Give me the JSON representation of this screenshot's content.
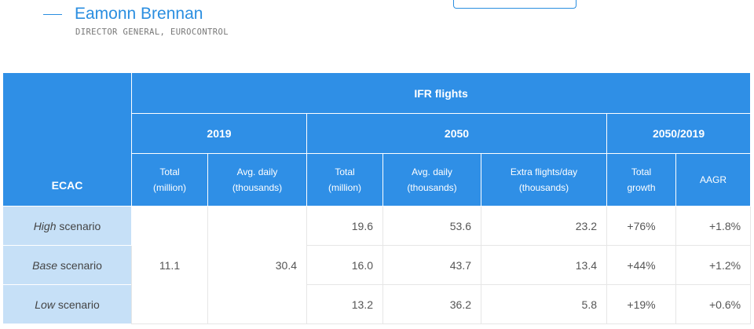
{
  "quote": {
    "author_name": "Eamonn Brennan",
    "author_role": "DIRECTOR GENERAL, EUROCONTROL"
  },
  "table": {
    "stub_header": "ECAC",
    "group_header": "IFR flights",
    "periods": [
      "2019",
      "2050",
      "2050/2019"
    ],
    "columns": [
      {
        "line1": "Total",
        "line2": "(million)"
      },
      {
        "line1": "Avg. daily",
        "line2": "(thousands)"
      },
      {
        "line1": "Total",
        "line2": "(million)"
      },
      {
        "line1": "Avg. daily",
        "line2": "(thousands)"
      },
      {
        "line1": "Extra flights/day",
        "line2": "(thousands)"
      },
      {
        "line1": "Total",
        "line2": "growth"
      },
      {
        "line1": "AAGR",
        "line2": ""
      }
    ],
    "base_2019": {
      "total_million": "11.1",
      "avg_daily_thousands": "30.4"
    },
    "rows": [
      {
        "name_italic": "High",
        "name_rest": " scenario",
        "total_2050": "19.6",
        "avg_daily_2050": "53.6",
        "extra_per_day": "23.2",
        "total_growth": "+76%",
        "aagr": "+1.8%"
      },
      {
        "name_italic": "Base",
        "name_rest": " scenario",
        "total_2050": "16.0",
        "avg_daily_2050": "43.7",
        "extra_per_day": "13.4",
        "total_growth": "+44%",
        "aagr": "+1.2%"
      },
      {
        "name_italic": "Low",
        "name_rest": " scenario",
        "total_2050": "13.2",
        "avg_daily_2050": "36.2",
        "extra_per_day": "5.8",
        "total_growth": "+19%",
        "aagr": "+0.6%"
      }
    ]
  }
}
